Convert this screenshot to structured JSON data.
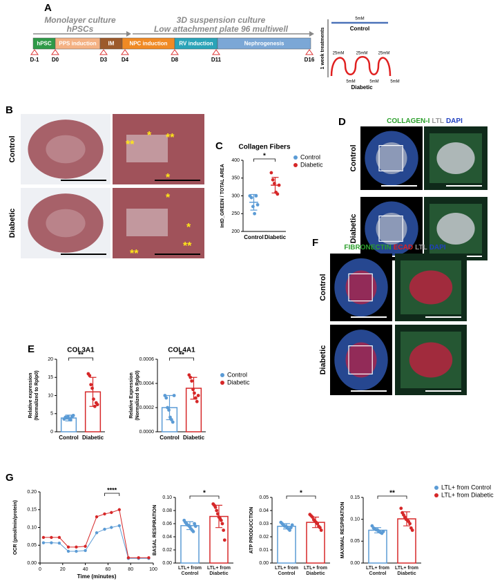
{
  "figure": {
    "labels": [
      "A",
      "B",
      "C",
      "D",
      "E",
      "F",
      "G"
    ],
    "timeline": {
      "monolayer": [
        "Monolayer culture",
        "hPSCs"
      ],
      "suspension": [
        "3D suspension culture",
        "Low attachment plate 96 multiwell"
      ],
      "stages": [
        {
          "label": "hPSC",
          "color": "#2e9a48"
        },
        {
          "label": "PPS induction",
          "color": "#f4b183"
        },
        {
          "label": "IM",
          "color": "#9c5a2b"
        },
        {
          "label": "NPC induction",
          "color": "#f08a24"
        },
        {
          "label": "RV induction",
          "color": "#2aa3b8"
        },
        {
          "label": "Nephrogenesis",
          "color": "#7ba7d6"
        }
      ],
      "days": [
        "D-1",
        "D0",
        "D3",
        "D4",
        "D8",
        "D11",
        "D16"
      ],
      "treatment_axis": "1 week treatments",
      "control": {
        "label": "Control",
        "conc": "5mM",
        "color": "#4a72b8"
      },
      "diabetic": {
        "label": "Diabetic",
        "high": [
          "25mM",
          "25mM",
          "25mM"
        ],
        "low": [
          "5mM",
          "5mM",
          "5mM"
        ],
        "color": "#e02020"
      }
    },
    "histology_rows": [
      "Control",
      "Diabetic"
    ],
    "histology_marks": [
      "**",
      "*",
      "**",
      "*",
      "*",
      "*",
      "**",
      "**"
    ],
    "panel_d": {
      "stain": [
        {
          "text": "COLLAGEN-I",
          "color": "#2ca02c"
        },
        {
          "text": "LTL",
          "color": "#999999"
        },
        {
          "text": "DAPI",
          "color": "#1f3fbf"
        }
      ],
      "rows": [
        "Control",
        "Diabetic"
      ]
    },
    "panel_f": {
      "stain": [
        {
          "text": "FIBRONECTIN",
          "color": "#2ca02c"
        },
        {
          "text": "ECAD",
          "color": "#e02020"
        },
        {
          "text": "LTL",
          "color": "#999999"
        },
        {
          "text": "DAPI",
          "color": "#1f3fbf"
        }
      ],
      "rows": [
        "Control",
        "Diabetic"
      ]
    }
  },
  "chart_data": [
    {
      "type": "bar",
      "title": "Collagen Fibers",
      "ylabel": [
        "IntD_GREEN / TOTAL AREA"
      ],
      "bars": false,
      "categories": [
        "Control",
        "Diabetic"
      ],
      "colors": [
        "#5b9bd5",
        "#d62728"
      ],
      "values": [
        282,
        330
      ],
      "errors": [
        22,
        22
      ],
      "points": [
        [
          300,
          295,
          270,
          250,
          300,
          275
        ],
        [
          365,
          345,
          335,
          310,
          305,
          330
        ]
      ],
      "ylim": [
        200,
        400
      ],
      "yticks": [
        200,
        250,
        300,
        350,
        400
      ],
      "significance": "*",
      "legend": [
        {
          "name": "Control",
          "color": "#5b9bd5"
        },
        {
          "name": "Diabetic",
          "color": "#d62728"
        }
      ]
    },
    {
      "type": "bar",
      "title": "COL3A1",
      "ylabel": [
        "Relative expression",
        "(Normalized to Rplp0)"
      ],
      "bars": true,
      "categories": [
        "Control",
        "Diabetic"
      ],
      "colors": [
        "#5b9bd5",
        "#d62728"
      ],
      "values": [
        3.8,
        11
      ],
      "errors": [
        0.8,
        4
      ],
      "points": [
        [
          3.5,
          4,
          3.8,
          4.2,
          3.6,
          3.3,
          4.1,
          4.5
        ],
        [
          16,
          15.5,
          13,
          12,
          9,
          7,
          8,
          7.5
        ]
      ],
      "ylim": [
        0,
        20
      ],
      "yticks": [
        0,
        5,
        10,
        15,
        20
      ],
      "significance": "**"
    },
    {
      "type": "bar",
      "title": "COL4A1",
      "ylabel": [
        "Relative Expression",
        "(Normalized to Rplp0)"
      ],
      "bars": true,
      "categories": [
        "Control",
        "Diabetic"
      ],
      "colors": [
        "#5b9bd5",
        "#d62728"
      ],
      "values": [
        0.0002,
        0.00036
      ],
      "errors": [
        0.0001,
        9e-05
      ],
      "points": [
        [
          0.0003,
          0.00028,
          0.0002,
          0.00018,
          0.00012,
          0.0001,
          8e-05,
          0.0003
        ],
        [
          0.00047,
          0.00045,
          0.00042,
          0.00035,
          0.00032,
          0.00028,
          0.00025,
          0.0003
        ]
      ],
      "ylim": [
        0,
        0.0006
      ],
      "yticks": [
        {
          "value": 0,
          "label": "0.0000"
        },
        {
          "value": 0.0002,
          "label": "0.0002"
        },
        {
          "value": 0.0004,
          "label": "0.0004"
        },
        {
          "value": 0.0006,
          "label": "0.0006"
        }
      ],
      "significance": "**",
      "legend": [
        {
          "name": "Control",
          "color": "#5b9bd5"
        },
        {
          "name": "Diabetic",
          "color": "#d62728"
        }
      ]
    },
    {
      "type": "line",
      "ylabel": "OCR (pmol/min/protein)",
      "xlabel": "Time (minutes)",
      "x": [
        3,
        10,
        17,
        25,
        32,
        40,
        50,
        57,
        63,
        70,
        78,
        87,
        96
      ],
      "series": [
        {
          "name": "LTL+ from Control",
          "color": "#5b9bd5",
          "values": [
            0.057,
            0.057,
            0.056,
            0.033,
            0.033,
            0.035,
            0.085,
            0.095,
            0.1,
            0.105,
            0.013,
            0.013,
            0.013
          ]
        },
        {
          "name": "LTL+ from Diabetic",
          "color": "#d62728",
          "values": [
            0.072,
            0.072,
            0.072,
            0.045,
            0.045,
            0.047,
            0.13,
            0.138,
            0.142,
            0.15,
            0.015,
            0.015,
            0.015
          ]
        }
      ],
      "xlim": [
        0,
        100
      ],
      "xticks": [
        0,
        20,
        40,
        60,
        80,
        100
      ],
      "ylim": [
        0,
        0.2
      ],
      "yticks": [
        {
          "value": 0,
          "label": "0.00"
        },
        {
          "value": 0.05,
          "label": "0.05"
        },
        {
          "value": 0.1,
          "label": "0.10"
        },
        {
          "value": 0.15,
          "label": "0.15"
        },
        {
          "value": 0.2,
          "label": "0.20"
        }
      ],
      "significance": "****"
    },
    {
      "type": "bar",
      "ylabel": [
        "BASAL RESPIRATION"
      ],
      "bars": true,
      "categories": [
        "LTL+ from Control",
        "LTL+ from Diabetic"
      ],
      "colors": [
        "#5b9bd5",
        "#d62728"
      ],
      "values": [
        0.057,
        0.071
      ],
      "errors": [
        0.006,
        0.017
      ],
      "points": [
        [
          0.065,
          0.062,
          0.06,
          0.058,
          0.057,
          0.055,
          0.052,
          0.05,
          0.048,
          0.06,
          0.056
        ],
        [
          0.09,
          0.088,
          0.085,
          0.08,
          0.075,
          0.07,
          0.068,
          0.065,
          0.06,
          0.05,
          0.035
        ]
      ],
      "ylim": [
        0,
        0.1
      ],
      "yticks": [
        {
          "value": 0,
          "label": "0.00"
        },
        {
          "value": 0.02,
          "label": "0.02"
        },
        {
          "value": 0.04,
          "label": "0.04"
        },
        {
          "value": 0.06,
          "label": "0.06"
        },
        {
          "value": 0.08,
          "label": "0.08"
        },
        {
          "value": 0.1,
          "label": "0.10"
        }
      ],
      "significance": "*"
    },
    {
      "type": "bar",
      "ylabel": [
        "ATP PRODUCCTION"
      ],
      "bars": true,
      "categories": [
        "LTL+ from Control",
        "LTL+ from Diabetic"
      ],
      "colors": [
        "#5b9bd5",
        "#d62728"
      ],
      "values": [
        0.028,
        0.031
      ],
      "errors": [
        0.002,
        0.004
      ],
      "points": [
        [
          0.031,
          0.03,
          0.029,
          0.028,
          0.028,
          0.027,
          0.026,
          0.025,
          0.027,
          0.029
        ],
        [
          0.037,
          0.036,
          0.035,
          0.033,
          0.032,
          0.031,
          0.03,
          0.028,
          0.027,
          0.025
        ]
      ],
      "ylim": [
        0,
        0.05
      ],
      "yticks": [
        {
          "value": 0,
          "label": "0.00"
        },
        {
          "value": 0.01,
          "label": "0.01"
        },
        {
          "value": 0.02,
          "label": "0.02"
        },
        {
          "value": 0.03,
          "label": "0.03"
        },
        {
          "value": 0.04,
          "label": "0.04"
        },
        {
          "value": 0.05,
          "label": "0.05"
        }
      ],
      "significance": "*"
    },
    {
      "type": "bar",
      "ylabel": [
        "MAXIMAL RESPIRATION"
      ],
      "bars": true,
      "categories": [
        "LTL+ from Control",
        "LTL+ from Diabetic"
      ],
      "colors": [
        "#5b9bd5",
        "#d62728"
      ],
      "values": [
        0.075,
        0.101
      ],
      "errors": [
        0.006,
        0.016
      ],
      "points": [
        [
          0.085,
          0.08,
          0.078,
          0.076,
          0.075,
          0.073,
          0.07,
          0.068,
          0.072
        ],
        [
          0.125,
          0.115,
          0.11,
          0.105,
          0.1,
          0.098,
          0.095,
          0.09,
          0.08,
          0.075
        ]
      ],
      "ylim": [
        0,
        0.15
      ],
      "yticks": [
        {
          "value": 0,
          "label": "0.00"
        },
        {
          "value": 0.05,
          "label": "0.05"
        },
        {
          "value": 0.1,
          "label": "0.10"
        },
        {
          "value": 0.15,
          "label": "0.15"
        }
      ],
      "significance": "**",
      "legend": [
        {
          "name": "LTL+ from Control",
          "color": "#5b9bd5"
        },
        {
          "name": "LTL+ from Diabetic",
          "color": "#d62728"
        }
      ]
    }
  ]
}
